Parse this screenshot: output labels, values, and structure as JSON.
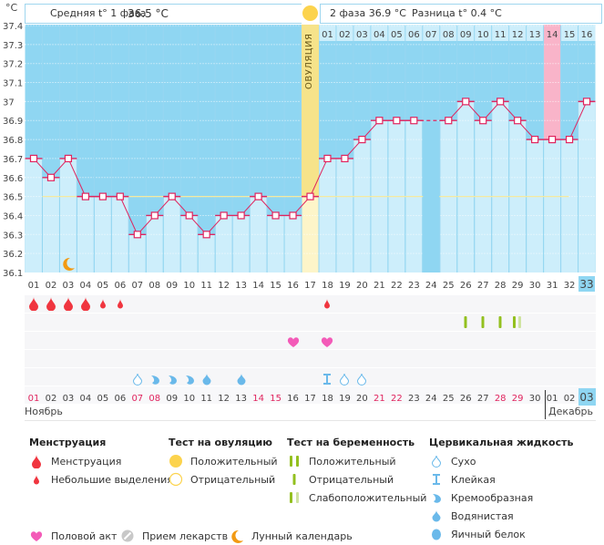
{
  "header": {
    "unit": "°C",
    "phase1_label": "Средняя t° 1 фаза",
    "phase1_value": "36.5 °C",
    "phase2_text": "2 фаза 36.9 °C",
    "diff_text": "Разница t° 0.4 °C",
    "ovulation_label": "ОВУЛЯЦИЯ"
  },
  "chart_data": {
    "type": "line",
    "title": "",
    "ylabel": "°C",
    "ylim": [
      36.1,
      37.4
    ],
    "yticks": [
      "37.4",
      "37.3",
      "37.2",
      "37.1",
      "37",
      "36.9",
      "36.8",
      "36.7",
      "36.6",
      "36.5",
      "36.4",
      "36.3",
      "36.2",
      "36.1"
    ],
    "yticks_values": [
      37.4,
      37.3,
      37.2,
      37.1,
      37.0,
      36.9,
      36.8,
      36.7,
      36.6,
      36.5,
      36.4,
      36.3,
      36.2,
      36.1
    ],
    "cycle_days": [
      "01",
      "02",
      "03",
      "04",
      "05",
      "06",
      "07",
      "08",
      "09",
      "10",
      "11",
      "12",
      "13",
      "14",
      "15",
      "16",
      "17",
      "18",
      "19",
      "20",
      "21",
      "22",
      "23",
      "24",
      "25",
      "26",
      "27",
      "28",
      "29",
      "30",
      "31",
      "32",
      "33"
    ],
    "temperatures": [
      36.7,
      36.6,
      36.7,
      36.5,
      36.5,
      36.5,
      36.3,
      36.4,
      36.5,
      36.4,
      36.3,
      36.4,
      36.4,
      36.5,
      36.4,
      36.4,
      36.5,
      36.7,
      36.7,
      36.8,
      36.9,
      36.9,
      36.9,
      null,
      36.9,
      37.0,
      36.9,
      37.0,
      36.9,
      36.8,
      36.8,
      36.8,
      37.0
    ],
    "coverline": 36.5,
    "ovulation_day": 17,
    "post_ovulation_days": [
      "01",
      "02",
      "03",
      "04",
      "05",
      "06",
      "07",
      "08",
      "09",
      "10",
      "11",
      "12",
      "13",
      "14",
      "15",
      "16"
    ],
    "highlight_post_ovulation_day": "14",
    "current_day": "33",
    "missing_day": 24,
    "grid": true
  },
  "calendar": {
    "dates": [
      "01",
      "02",
      "03",
      "04",
      "05",
      "06",
      "07",
      "08",
      "09",
      "10",
      "11",
      "12",
      "13",
      "14",
      "15",
      "16",
      "17",
      "18",
      "19",
      "20",
      "21",
      "22",
      "23",
      "24",
      "25",
      "26",
      "27",
      "28",
      "29",
      "30",
      "01",
      "02",
      "03"
    ],
    "weekend_dates_idx": [
      0,
      6,
      7,
      13,
      14,
      20,
      21,
      27,
      28
    ],
    "month1": "Ноябрь",
    "month2": "Декабрь",
    "current_date": "03"
  },
  "rows": {
    "menstruation": [
      {
        "day": 1,
        "type": "heavy"
      },
      {
        "day": 2,
        "type": "heavy"
      },
      {
        "day": 3,
        "type": "heavy"
      },
      {
        "day": 4,
        "type": "heavy"
      },
      {
        "day": 5,
        "type": "light"
      },
      {
        "day": 6,
        "type": "light"
      },
      {
        "day": 18,
        "type": "light"
      }
    ],
    "pregnancy_test": [
      {
        "day": 26,
        "type": "negative"
      },
      {
        "day": 27,
        "type": "negative"
      },
      {
        "day": 28,
        "type": "negative"
      },
      {
        "day": 29,
        "type": "weak"
      }
    ],
    "intercourse": [
      {
        "day": 16
      },
      {
        "day": 18
      }
    ],
    "moon": [
      {
        "day": 3
      }
    ],
    "cervical": [
      {
        "day": 7,
        "type": "dry"
      },
      {
        "day": 8,
        "type": "creamy"
      },
      {
        "day": 9,
        "type": "creamy"
      },
      {
        "day": 10,
        "type": "creamy"
      },
      {
        "day": 11,
        "type": "watery"
      },
      {
        "day": 13,
        "type": "watery"
      },
      {
        "day": 18,
        "type": "sticky"
      },
      {
        "day": 19,
        "type": "dry"
      },
      {
        "day": 20,
        "type": "dry"
      }
    ]
  },
  "legend": {
    "menstruation": {
      "title": "Менструация",
      "items": [
        "Менструация",
        "Небольшие выделения"
      ]
    },
    "ovulation_test": {
      "title": "Тест на овуляцию",
      "items": [
        "Положительный",
        "Отрицательный"
      ]
    },
    "pregnancy_test": {
      "title": "Тест на беременность",
      "items": [
        "Положительный",
        "Отрицательный",
        "Слабоположительный"
      ]
    },
    "cervical": {
      "title": "Цервикальная жидкость",
      "items": [
        "Сухо",
        "Клейкая",
        "Кремообразная",
        "Водянистая",
        "Яичный белок"
      ]
    },
    "other": [
      "Половой акт",
      "Прием лекарств",
      "Лунный календарь"
    ]
  },
  "colors": {
    "sky": "#8fd6f2",
    "bar": "#cdeefb",
    "line": "#e0245e",
    "ovulation": "#f6e38a",
    "ovu_light": "#fdf5c9",
    "pink": "#f9b4c9",
    "drop_red": "#f0353f",
    "green": "#93c01f",
    "green_light": "#cfe3a0",
    "cervical_blue": "#6ab9ea",
    "heart": "#f35bb8",
    "moon": "#f29a13"
  }
}
